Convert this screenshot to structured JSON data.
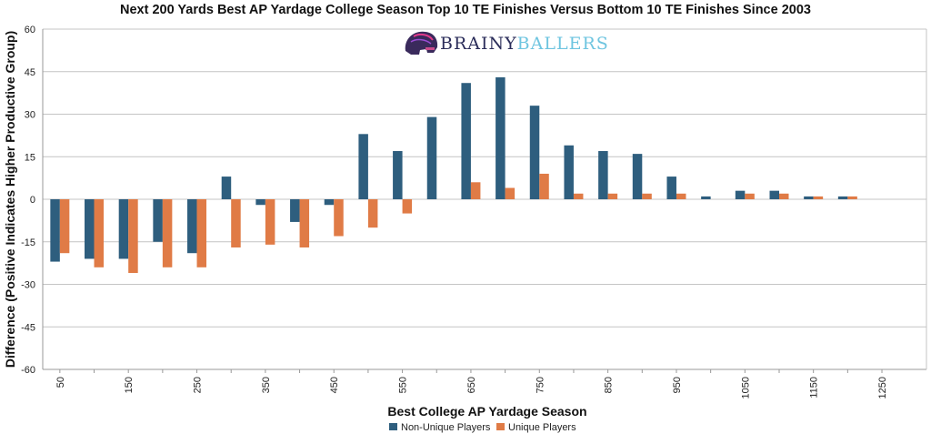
{
  "chart_data": {
    "type": "bar",
    "title": "Next 200 Yards Best AP Yardage College Season Top 10 TE Finishes Versus Bottom 10 TE Finishes Since 2003",
    "xlabel": "Best College AP Yardage Season",
    "ylabel": "Difference (Positive Indicates Higher Productive Group)",
    "ylim": [
      -60,
      60
    ],
    "yticks": [
      60,
      45,
      30,
      15,
      0,
      -15,
      -30,
      -45,
      -60
    ],
    "categories": [
      "50",
      "100",
      "150",
      "200",
      "250",
      "300",
      "350",
      "400",
      "450",
      "500",
      "550",
      "600",
      "650",
      "700",
      "750",
      "800",
      "850",
      "900",
      "950",
      "1000",
      "1050",
      "1100",
      "1150",
      "1200",
      "1250"
    ],
    "xtick_labels": [
      "50",
      "",
      "150",
      "",
      "250",
      "",
      "350",
      "",
      "450",
      "",
      "550",
      "",
      "650",
      "",
      "750",
      "",
      "850",
      "",
      "950",
      "",
      "1050",
      "",
      "1150",
      "",
      "1250"
    ],
    "series": [
      {
        "name": "Non-Unique Players",
        "color": "#2e5e7e",
        "values": [
          -22,
          -21,
          -21,
          -15,
          -19,
          8,
          -2,
          -8,
          -2,
          23,
          17,
          29,
          41,
          43,
          33,
          19,
          17,
          16,
          8,
          1,
          3,
          3,
          1,
          1,
          0
        ]
      },
      {
        "name": "Unique Players",
        "color": "#e07b46",
        "values": [
          -19,
          -24,
          -26,
          -24,
          -24,
          -17,
          -16,
          -17,
          -13,
          -10,
          -5,
          0,
          6,
          4,
          9,
          2,
          2,
          2,
          2,
          0,
          2,
          2,
          1,
          1,
          0
        ]
      }
    ],
    "grid": true,
    "legend": "bottom-center"
  },
  "logo": {
    "part1": "BRAINY",
    "part2": "BALLERS",
    "color1": "#2b2d5a",
    "color2": "#6fc5e0"
  }
}
